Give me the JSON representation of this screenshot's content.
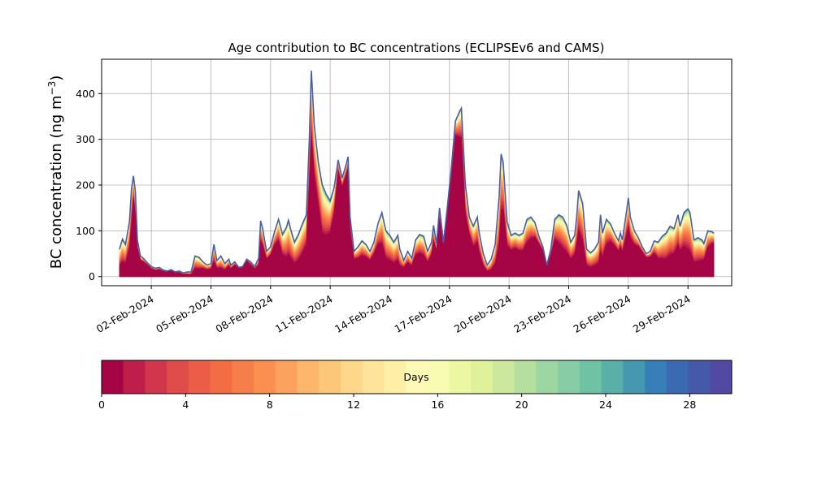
{
  "chart_data": {
    "type": "area",
    "title": "Age contribution to BC concentrations (ECLIPSEv6 and CAMS)",
    "xlabel": "",
    "ylabel": "BC concentration (ng m",
    "ylabel_sup": "−3",
    "ylabel_close": ")",
    "ylim": [
      -20,
      475
    ],
    "yticks": [
      0,
      100,
      200,
      300,
      400
    ],
    "xlim": [
      -1.5,
      30.2
    ],
    "grid": true,
    "x_tick_labels": [
      "02-Feb-2024",
      "05-Feb-2024",
      "08-Feb-2024",
      "11-Feb-2024",
      "14-Feb-2024",
      "17-Feb-2024",
      "20-Feb-2024",
      "23-Feb-2024",
      "26-Feb-2024",
      "29-Feb-2024"
    ],
    "x_tick_days": [
      1,
      4,
      7,
      10,
      13,
      16,
      19,
      22,
      25,
      28
    ],
    "series_note": "30 stacked age classes (0-30 days); fraction profile of each class",
    "total": [
      [
        -0.6,
        60
      ],
      [
        -0.45,
        82
      ],
      [
        -0.3,
        70
      ],
      [
        -0.1,
        120
      ],
      [
        0.0,
        190
      ],
      [
        0.1,
        220
      ],
      [
        0.2,
        185
      ],
      [
        0.3,
        80
      ],
      [
        0.45,
        45
      ],
      [
        0.6,
        40
      ],
      [
        0.8,
        30
      ],
      [
        1.0,
        22
      ],
      [
        1.2,
        18
      ],
      [
        1.4,
        20
      ],
      [
        1.6,
        14
      ],
      [
        1.8,
        12
      ],
      [
        2.0,
        15
      ],
      [
        2.2,
        10
      ],
      [
        2.4,
        12
      ],
      [
        2.6,
        8
      ],
      [
        2.8,
        10
      ],
      [
        3.0,
        10
      ],
      [
        3.2,
        45
      ],
      [
        3.4,
        42
      ],
      [
        3.6,
        32
      ],
      [
        3.8,
        25
      ],
      [
        4.0,
        28
      ],
      [
        4.15,
        70
      ],
      [
        4.3,
        35
      ],
      [
        4.5,
        45
      ],
      [
        4.7,
        28
      ],
      [
        4.9,
        38
      ],
      [
        5.0,
        25
      ],
      [
        5.2,
        32
      ],
      [
        5.4,
        20
      ],
      [
        5.6,
        22
      ],
      [
        5.8,
        38
      ],
      [
        6.0,
        32
      ],
      [
        6.2,
        22
      ],
      [
        6.4,
        40
      ],
      [
        6.5,
        122
      ],
      [
        6.6,
        105
      ],
      [
        6.8,
        55
      ],
      [
        7.0,
        65
      ],
      [
        7.2,
        98
      ],
      [
        7.4,
        125
      ],
      [
        7.6,
        92
      ],
      [
        7.8,
        108
      ],
      [
        7.9,
        123
      ],
      [
        8.0,
        105
      ],
      [
        8.2,
        75
      ],
      [
        8.4,
        92
      ],
      [
        8.6,
        115
      ],
      [
        8.8,
        135
      ],
      [
        8.95,
        300
      ],
      [
        9.05,
        450
      ],
      [
        9.2,
        330
      ],
      [
        9.4,
        250
      ],
      [
        9.6,
        200
      ],
      [
        9.8,
        180
      ],
      [
        10.0,
        165
      ],
      [
        10.2,
        195
      ],
      [
        10.4,
        255
      ],
      [
        10.6,
        215
      ],
      [
        10.8,
        245
      ],
      [
        10.9,
        262
      ],
      [
        11.0,
        130
      ],
      [
        11.2,
        55
      ],
      [
        11.4,
        65
      ],
      [
        11.6,
        78
      ],
      [
        11.8,
        70
      ],
      [
        12.0,
        55
      ],
      [
        12.2,
        75
      ],
      [
        12.4,
        115
      ],
      [
        12.6,
        140
      ],
      [
        12.8,
        100
      ],
      [
        13.0,
        90
      ],
      [
        13.2,
        75
      ],
      [
        13.4,
        90
      ],
      [
        13.5,
        60
      ],
      [
        13.7,
        35
      ],
      [
        13.9,
        55
      ],
      [
        14.1,
        40
      ],
      [
        14.3,
        80
      ],
      [
        14.5,
        92
      ],
      [
        14.7,
        88
      ],
      [
        14.9,
        55
      ],
      [
        15.1,
        75
      ],
      [
        15.2,
        112
      ],
      [
        15.35,
        72
      ],
      [
        15.5,
        150
      ],
      [
        15.7,
        75
      ],
      [
        15.9,
        155
      ],
      [
        16.1,
        240
      ],
      [
        16.3,
        340
      ],
      [
        16.5,
        360
      ],
      [
        16.6,
        368
      ],
      [
        16.8,
        200
      ],
      [
        17.0,
        130
      ],
      [
        17.2,
        110
      ],
      [
        17.4,
        130
      ],
      [
        17.5,
        95
      ],
      [
        17.7,
        50
      ],
      [
        17.9,
        25
      ],
      [
        18.1,
        38
      ],
      [
        18.3,
        70
      ],
      [
        18.5,
        175
      ],
      [
        18.6,
        268
      ],
      [
        18.7,
        250
      ],
      [
        18.9,
        120
      ],
      [
        19.1,
        90
      ],
      [
        19.3,
        95
      ],
      [
        19.5,
        90
      ],
      [
        19.7,
        95
      ],
      [
        19.9,
        125
      ],
      [
        20.1,
        130
      ],
      [
        20.3,
        118
      ],
      [
        20.5,
        88
      ],
      [
        20.7,
        65
      ],
      [
        20.9,
        25
      ],
      [
        21.1,
        60
      ],
      [
        21.3,
        125
      ],
      [
        21.5,
        135
      ],
      [
        21.7,
        130
      ],
      [
        21.9,
        112
      ],
      [
        22.1,
        75
      ],
      [
        22.3,
        90
      ],
      [
        22.4,
        130
      ],
      [
        22.5,
        188
      ],
      [
        22.7,
        160
      ],
      [
        22.9,
        60
      ],
      [
        23.1,
        52
      ],
      [
        23.3,
        60
      ],
      [
        23.5,
        75
      ],
      [
        23.6,
        135
      ],
      [
        23.7,
        95
      ],
      [
        23.9,
        125
      ],
      [
        24.1,
        115
      ],
      [
        24.3,
        95
      ],
      [
        24.5,
        78
      ],
      [
        24.6,
        95
      ],
      [
        24.7,
        80
      ],
      [
        24.9,
        140
      ],
      [
        25.0,
        172
      ],
      [
        25.1,
        130
      ],
      [
        25.3,
        100
      ],
      [
        25.5,
        85
      ],
      [
        25.7,
        65
      ],
      [
        25.9,
        50
      ],
      [
        26.1,
        55
      ],
      [
        26.3,
        78
      ],
      [
        26.5,
        75
      ],
      [
        26.7,
        88
      ],
      [
        26.9,
        95
      ],
      [
        27.1,
        110
      ],
      [
        27.3,
        105
      ],
      [
        27.5,
        135
      ],
      [
        27.6,
        110
      ],
      [
        27.8,
        140
      ],
      [
        28.0,
        148
      ],
      [
        28.1,
        140
      ],
      [
        28.3,
        80
      ],
      [
        28.5,
        85
      ],
      [
        28.7,
        80
      ],
      [
        28.8,
        72
      ],
      [
        29.0,
        100
      ],
      [
        29.2,
        98
      ],
      [
        29.3,
        95
      ]
    ],
    "colorbar": {
      "label": "Days",
      "min": 0,
      "max": 30,
      "ticks": [
        0,
        4,
        8,
        12,
        16,
        20,
        24,
        28
      ],
      "colors": [
        "#a50545",
        "#bf1d4a",
        "#d1364c",
        "#e04c4a",
        "#eb5d46",
        "#f26d43",
        "#f67e4a",
        "#f9904f",
        "#fca25d",
        "#fdb66a",
        "#fdc77a",
        "#fed78a",
        "#fee49a",
        "#feefa6",
        "#fefab5",
        "#f8fcb3",
        "#ecf7a2",
        "#dff19a",
        "#cbe89c",
        "#b4df9e",
        "#9ed6a3",
        "#86cda5",
        "#70c2a5",
        "#5aafa8",
        "#4697b0",
        "#3780b7",
        "#3a6bb2",
        "#4558aa",
        "#5249a3"
      ]
    }
  }
}
